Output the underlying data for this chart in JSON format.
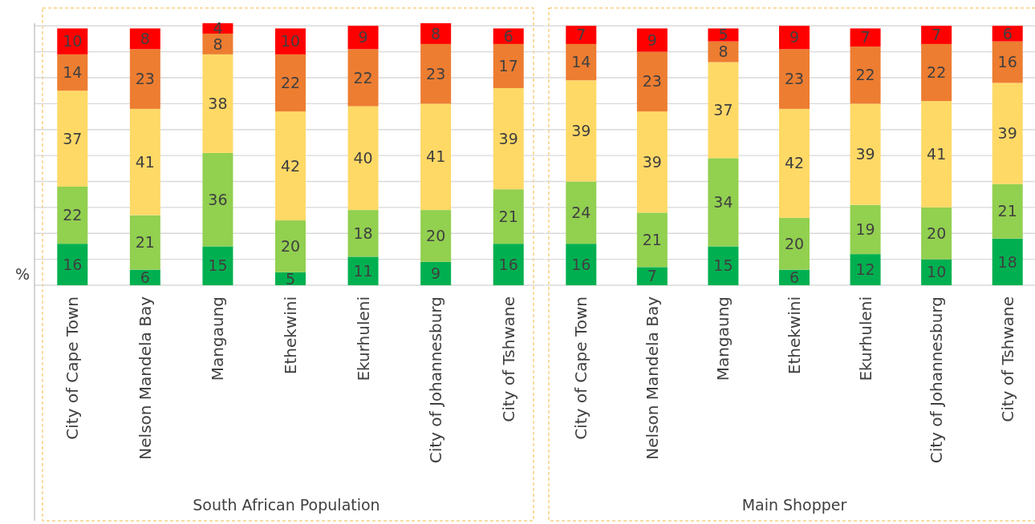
{
  "chart_data": [
    {
      "type": "bar",
      "stacked": true,
      "xlabel": "South African Population",
      "ylabel": "%",
      "categories": [
        "City of Cape Town",
        "Nelson Mandela Bay",
        "Mangaung",
        "Ethekwini",
        "Ekurhuleni",
        "City of Johannesburg",
        "City of Tshwane"
      ],
      "ylim": [
        0,
        101
      ],
      "yticks": [
        {
          "value": 0,
          "label": null
        },
        {
          "value": 10,
          "label": null
        },
        {
          "value": 20,
          "label": null
        },
        {
          "value": 30,
          "label": null
        },
        {
          "value": 40,
          "label": null
        },
        {
          "value": 50,
          "label": null
        },
        {
          "value": 60,
          "label": null
        },
        {
          "value": 70,
          "label": null
        },
        {
          "value": 80,
          "label": null
        },
        {
          "value": 90,
          "label": null
        },
        {
          "value": 100,
          "label": null
        }
      ],
      "grid": "y",
      "tick_labels": "x",
      "data_labels": true,
      "series": [
        {
          "color": "#00b050",
          "values": [
            16,
            6,
            15,
            5,
            11,
            9,
            16
          ]
        },
        {
          "color": "#92d050",
          "values": [
            22,
            21,
            36,
            20,
            18,
            20,
            21
          ]
        },
        {
          "color": "#ffd966",
          "values": [
            37,
            41,
            38,
            42,
            40,
            41,
            39
          ]
        },
        {
          "color": "#ed7d31",
          "values": [
            14,
            23,
            8,
            22,
            22,
            23,
            17
          ]
        },
        {
          "color": "#ff0000",
          "values": [
            10,
            8,
            4,
            10,
            9,
            8,
            6
          ]
        }
      ]
    },
    {
      "type": "bar",
      "stacked": true,
      "xlabel": "Main Shopper",
      "categories": [
        "City of Cape Town",
        "Nelson Mandela Bay",
        "Mangaung",
        "Ethekwini",
        "Ekurhuleni",
        "City of Johannesburg",
        "City of Tshwane"
      ],
      "ylim": [
        0,
        101
      ],
      "yticks": [
        {
          "value": 0,
          "label": null
        },
        {
          "value": 10,
          "label": null
        },
        {
          "value": 20,
          "label": null
        },
        {
          "value": 30,
          "label": null
        },
        {
          "value": 40,
          "label": null
        },
        {
          "value": 50,
          "label": null
        },
        {
          "value": 60,
          "label": null
        },
        {
          "value": 70,
          "label": null
        },
        {
          "value": 80,
          "label": null
        },
        {
          "value": 90,
          "label": null
        },
        {
          "value": 100,
          "label": null
        }
      ],
      "grid": "y",
      "tick_labels": "x",
      "data_labels": true,
      "series": [
        {
          "color": "#00b050",
          "values": [
            16,
            7,
            15,
            6,
            12,
            10,
            18
          ]
        },
        {
          "color": "#92d050",
          "values": [
            24,
            21,
            34,
            20,
            19,
            20,
            21
          ]
        },
        {
          "color": "#ffd966",
          "values": [
            39,
            39,
            37,
            42,
            39,
            41,
            39
          ]
        },
        {
          "color": "#ed7d31",
          "values": [
            14,
            23,
            8,
            23,
            22,
            22,
            16
          ]
        },
        {
          "color": "#ff0000",
          "values": [
            7,
            9,
            5,
            9,
            7,
            7,
            6
          ]
        }
      ]
    }
  ]
}
